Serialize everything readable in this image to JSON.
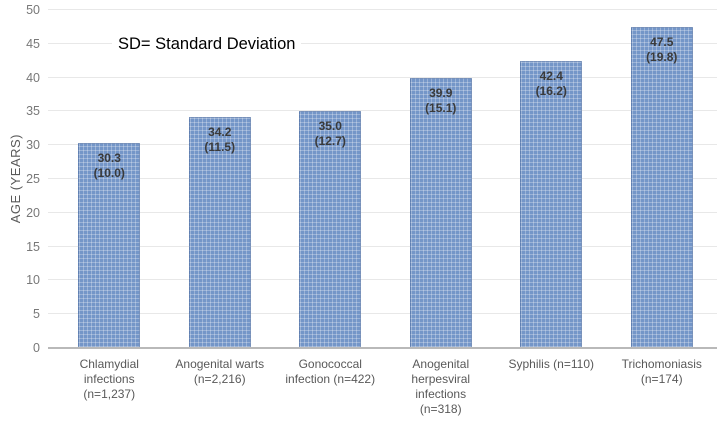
{
  "annotation_text": "SD= Standard Deviation",
  "chart_data": {
    "type": "bar",
    "title": "",
    "annotation": "SD= Standard Deviation",
    "xlabel": "",
    "ylabel": "AGE (YEARS)",
    "ylim": [
      0,
      50
    ],
    "ytick_step": 5,
    "yticks": [
      0,
      5,
      10,
      15,
      20,
      25,
      30,
      35,
      40,
      45,
      50
    ],
    "grid": "horizontal",
    "legend": "none",
    "categories": [
      "Chlamydial infections (n=1,237)",
      "Anogenital warts (n=2,216)",
      "Gonococcal infection (n=422)",
      "Anogenital herpesviral infections (n=318)",
      "Syphilis (n=110)",
      "Trichomoniasis (n=174)"
    ],
    "category_lines": [
      "Chlamydial\ninfections\n(n=1,237)",
      "Anogenital  warts\n(n=2,216)",
      "Gonococcal\ninfection (n=422)",
      "Anogenital\nherpesviral\ninfections\n(n=318)",
      "Syphilis (n=110)",
      "Trichomoniasis\n(n=174)"
    ],
    "values": [
      30.3,
      34.2,
      35.0,
      39.9,
      42.4,
      47.5
    ],
    "sd_values": [
      10.0,
      11.5,
      12.7,
      15.1,
      16.2,
      19.8
    ],
    "value_labels": [
      "30.3",
      "34.2",
      "35.0",
      "39.9",
      "42.4",
      "47.5"
    ],
    "sd_labels": [
      "(10.0)",
      "(11.5)",
      "(12.7)",
      "(15.1)",
      "(16.2)",
      "(19.8)"
    ],
    "colors": {
      "bar_fill": "#7496c8",
      "bar_pattern": "rgba(255,255,255,0.28)",
      "bar_border": "rgba(73,103,150,0.45)",
      "gridline": "#e8e8e8",
      "axis_line": "#b9b9b9",
      "tick_label": "#787878",
      "category_label": "#595959",
      "data_label": "#3a3a3a",
      "annotation": "#000000"
    }
  }
}
